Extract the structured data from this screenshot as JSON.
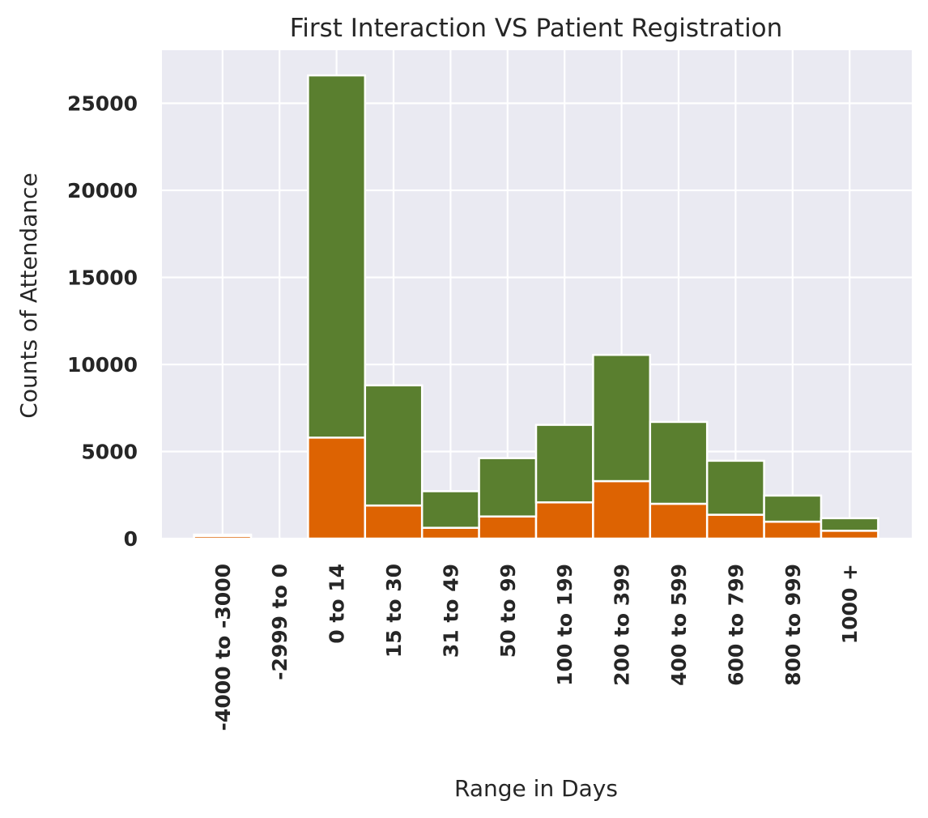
{
  "chart_data": {
    "type": "bar",
    "stacked": true,
    "title": "First Interaction VS Patient Registration",
    "xlabel": "Range in Days",
    "ylabel": "Counts of Attendance",
    "categories": [
      "-4000 to -3000",
      "-2999 to 0",
      "0 to 14",
      "15 to 30",
      "31 to 49",
      "50 to 99",
      "100 to 199",
      "200 to 399",
      "400 to 599",
      "600 to 799",
      "800 to 999",
      "1000 +"
    ],
    "series": [
      {
        "color": "#dd6302",
        "values": [
          150,
          0,
          5800,
          1900,
          620,
          1270,
          2080,
          3300,
          2000,
          1370,
          970,
          450
        ]
      },
      {
        "color": "#5a7f2f",
        "values": [
          80,
          0,
          20800,
          6900,
          2100,
          3350,
          4450,
          7250,
          4700,
          3100,
          1500,
          720
        ]
      }
    ],
    "ylim": [
      0,
      28000
    ],
    "yticks": [
      0,
      5000,
      10000,
      15000,
      20000,
      25000
    ],
    "grid": true,
    "background": "#eaeaf2",
    "grid_color": "#ffffff"
  }
}
